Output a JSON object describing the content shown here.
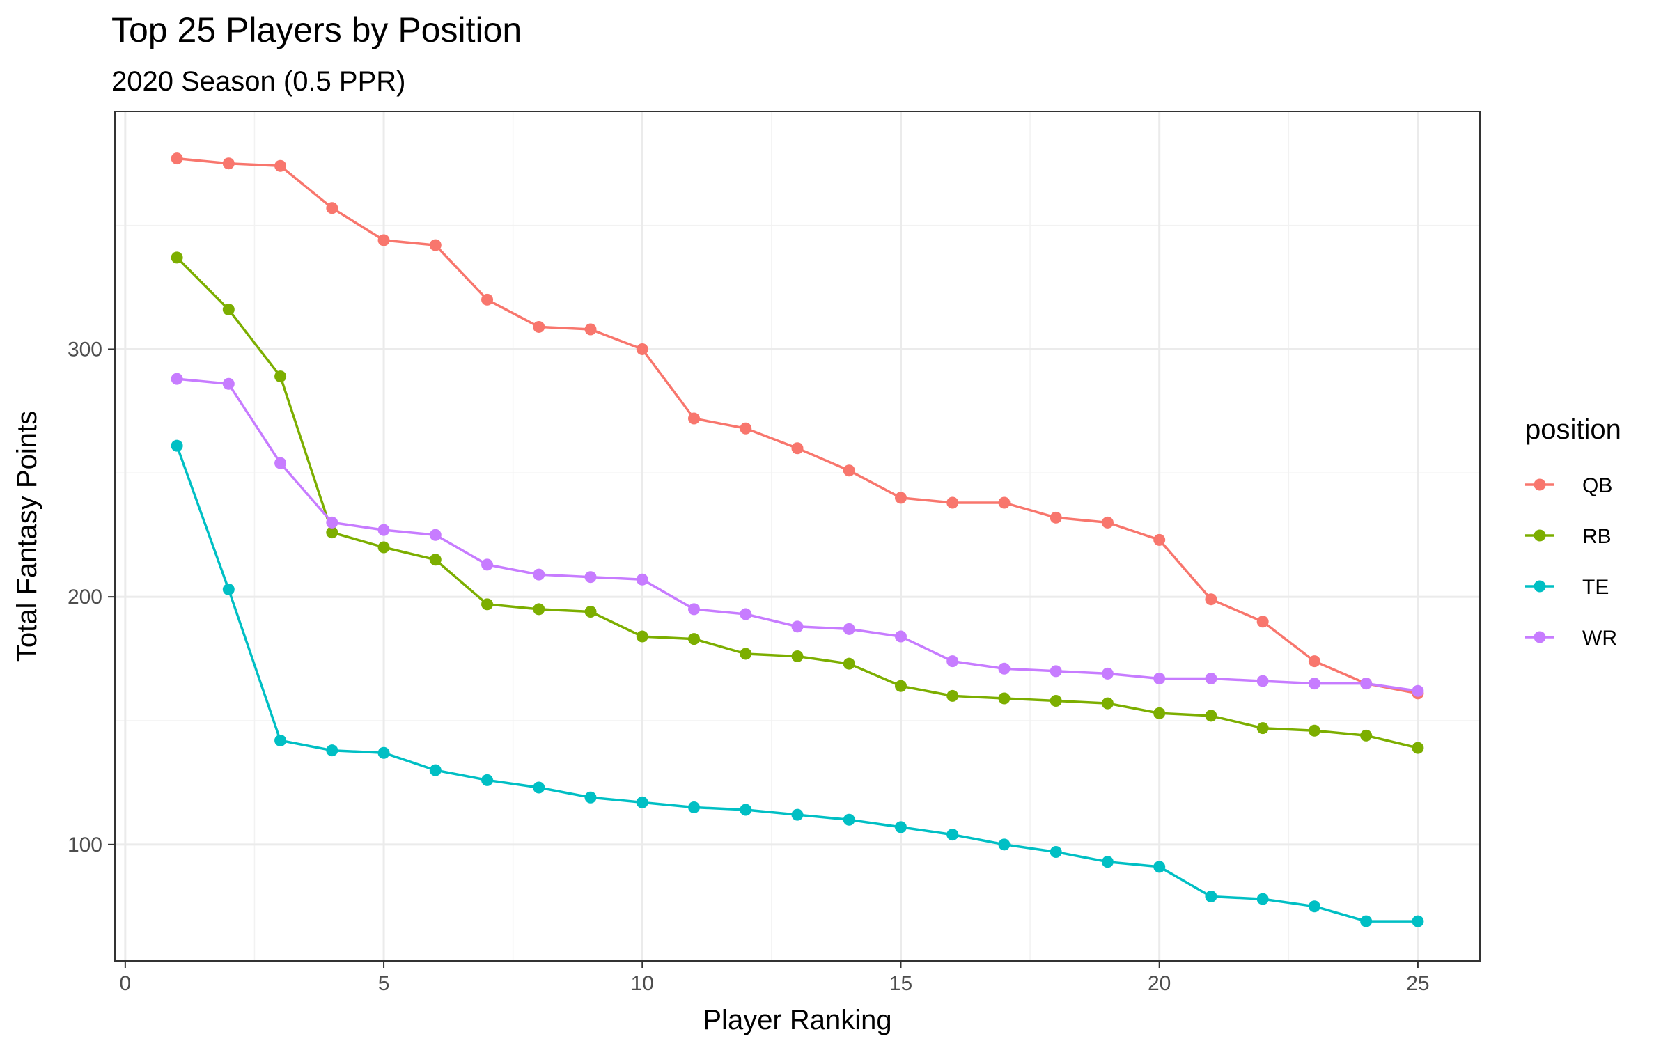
{
  "chart_data": {
    "type": "line",
    "title": "Top 25 Players by Position",
    "subtitle": "2020 Season (0.5 PPR)",
    "xlabel": "Player Ranking",
    "ylabel": "Total Fantasy Points",
    "xlim": [
      -0.2,
      26.2
    ],
    "ylim": [
      53,
      396
    ],
    "x_ticks": [
      0,
      5,
      10,
      15,
      20,
      25
    ],
    "y_ticks": [
      100,
      200,
      300
    ],
    "grid": true,
    "legend": {
      "title": "position",
      "placement": "right"
    },
    "x": [
      1,
      2,
      3,
      4,
      5,
      6,
      7,
      8,
      9,
      10,
      11,
      12,
      13,
      14,
      15,
      16,
      17,
      18,
      19,
      20,
      21,
      22,
      23,
      24,
      25
    ],
    "series": [
      {
        "name": "QB",
        "color": "#F8766D",
        "values": [
          377,
          375,
          374,
          357,
          344,
          342,
          320,
          309,
          308,
          300,
          272,
          268,
          260,
          251,
          240,
          238,
          238,
          232,
          230,
          223,
          199,
          190,
          174,
          165,
          161
        ]
      },
      {
        "name": "RB",
        "color": "#7CAE00",
        "values": [
          337,
          316,
          289,
          226,
          220,
          215,
          197,
          195,
          194,
          184,
          183,
          177,
          176,
          173,
          164,
          160,
          159,
          158,
          157,
          153,
          152,
          147,
          146,
          144,
          139
        ]
      },
      {
        "name": "TE",
        "color": "#00BFC4",
        "values": [
          261,
          203,
          142,
          138,
          137,
          130,
          126,
          123,
          119,
          117,
          115,
          114,
          112,
          110,
          107,
          104,
          100,
          97,
          93,
          91,
          79,
          78,
          75,
          69,
          69
        ]
      },
      {
        "name": "WR",
        "color": "#C77CFF",
        "values": [
          288,
          286,
          254,
          230,
          227,
          225,
          213,
          209,
          208,
          207,
          195,
          193,
          188,
          187,
          184,
          174,
          171,
          170,
          169,
          167,
          167,
          166,
          165,
          165,
          162
        ]
      }
    ]
  }
}
